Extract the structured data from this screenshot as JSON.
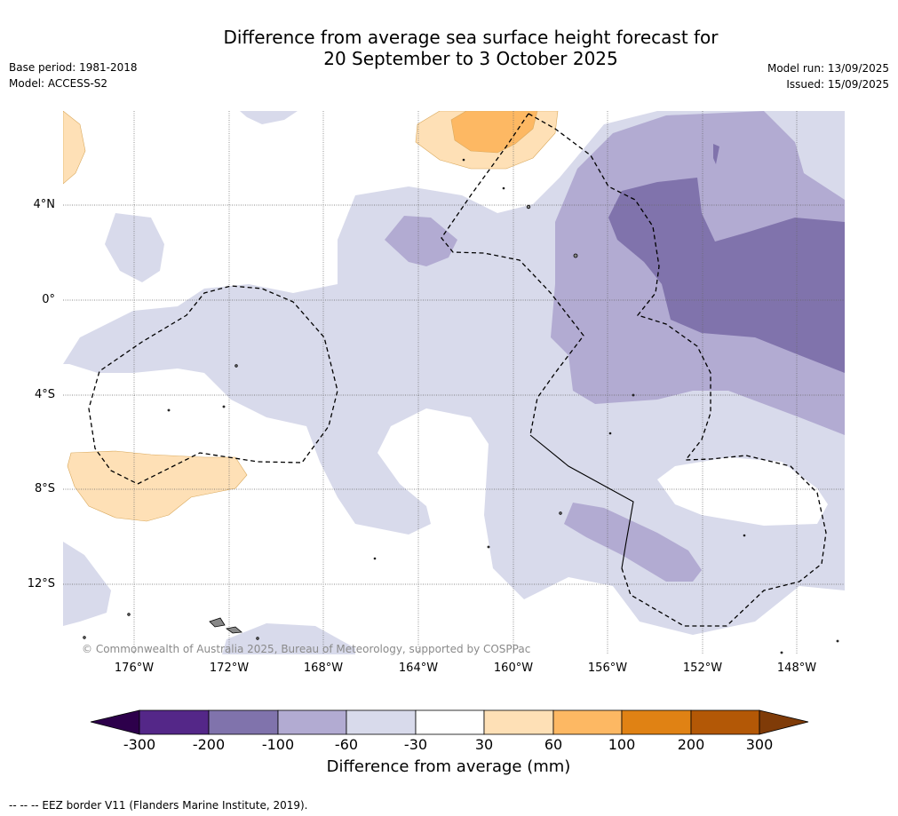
{
  "header": {
    "title_line1": "Difference from average sea surface height forecast for",
    "title_line2": "20 September to 3 October 2025",
    "base_period": "Base period: 1981-2018",
    "model": "Model: ACCESS-S2",
    "model_run": "Model run: 13/09/2025",
    "issued": "Issued: 15/09/2025"
  },
  "map": {
    "lat_labels": [
      "4°N",
      "0°",
      "4°S",
      "8°S",
      "12°S"
    ],
    "lon_labels": [
      "176°W",
      "172°W",
      "168°W",
      "164°W",
      "160°W",
      "156°W",
      "152°W",
      "148°W"
    ],
    "copyright": "© Commonwealth of Australia 2025, Bureau of Meteorology, supported by COSPPac"
  },
  "colorbar": {
    "title": "Difference from average (mm)",
    "ticks": [
      "-300",
      "-200",
      "-100",
      "-60",
      "-30",
      "30",
      "60",
      "100",
      "200",
      "300"
    ],
    "colors": [
      "#2d004b",
      "#542788",
      "#8073ac",
      "#b2abd2",
      "#d8daeb",
      "#ffffff",
      "#fee0b6",
      "#fdb863",
      "#e08214",
      "#b35806",
      "#7f3b08"
    ]
  },
  "footer": {
    "legend_note": "-- -- -- EEZ border V11 (Flanders Marine Institute, 2019)."
  }
}
